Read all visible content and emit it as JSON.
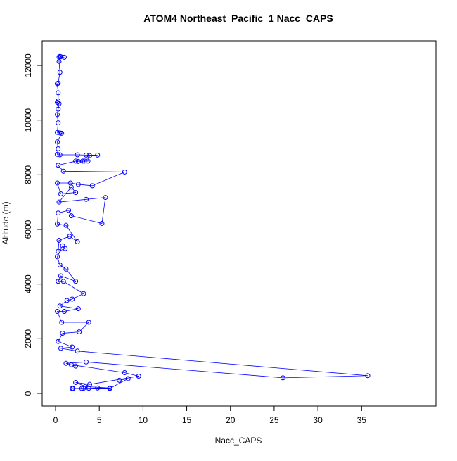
{
  "chart_data": {
    "type": "line",
    "title": "ATOM4 Northeast_Pacific_1 Nacc_CAPS",
    "xlabel": "Nacc_CAPS",
    "ylabel": "Altitude (m)",
    "xlim": [
      -1.53,
      43.5
    ],
    "ylim": [
      -464,
      12902
    ],
    "xticks": [
      0,
      5,
      10,
      15,
      20,
      25,
      30,
      35
    ],
    "yticks": [
      0,
      2000,
      4000,
      6000,
      8000,
      10000,
      12000
    ],
    "series": [
      {
        "color": "#0000ff",
        "x": [
          0.5,
          0.6,
          1.0,
          0.4,
          0.4,
          0.5,
          0.3,
          0.2,
          0.3,
          0.3,
          0.2,
          0.4,
          0.3,
          0.2,
          0.3,
          0.2,
          0.5,
          0.7,
          0.2,
          0.3,
          0.2,
          0.5,
          2.5,
          3.5,
          4.8,
          3.9,
          3.7,
          3.3,
          2.6,
          3.1,
          2.3,
          0.3,
          0.9,
          7.9,
          4.2,
          2.6,
          1.7,
          0.2,
          0.6,
          2.3,
          1.8,
          0.4,
          3.5,
          5.7,
          5.3,
          1.8,
          1.5,
          0.3,
          0.2,
          1.2,
          2.5,
          1.6,
          0.4,
          0.3,
          1.1,
          0.8,
          0.2,
          0.5,
          1.2,
          2.3,
          0.6,
          0.3,
          0.9,
          3.2,
          1.9,
          1.3,
          0.5,
          2.6,
          1.0,
          0.2,
          0.7,
          3.8,
          2.7,
          0.8,
          0.3,
          1.9,
          0.6,
          2.5,
          35.7,
          26.0,
          3.5,
          1.2,
          2.3,
          1.8,
          7.9,
          9.5,
          3.9,
          2.3,
          3.4,
          6.2,
          4.8,
          3.0,
          1.9,
          2.0,
          3.2,
          3.8,
          6.2,
          8.3,
          7.3
        ],
        "values": [
          12330,
          12320,
          12300,
          12310,
          12150,
          11750,
          11350,
          11330,
          11000,
          10700,
          10650,
          10600,
          10400,
          10200,
          9900,
          9550,
          9530,
          9520,
          9200,
          8950,
          8750,
          8730,
          8730,
          8720,
          8720,
          8700,
          8500,
          8500,
          8490,
          8500,
          8500,
          8350,
          8130,
          8100,
          7600,
          7650,
          7700,
          7700,
          7300,
          7350,
          7550,
          7000,
          7100,
          7170,
          6220,
          6500,
          6700,
          6600,
          6200,
          6150,
          5550,
          5750,
          5600,
          5200,
          5300,
          5400,
          5000,
          4700,
          4550,
          4100,
          4300,
          4100,
          4100,
          3650,
          3450,
          3400,
          3200,
          3100,
          3000,
          3000,
          2600,
          2600,
          2250,
          2200,
          1900,
          1700,
          1650,
          1550,
          650,
          570,
          1150,
          1100,
          1000,
          1050,
          760,
          630,
          330,
          400,
          250,
          200,
          200,
          180,
          180,
          180,
          190,
          190,
          180,
          540,
          480
        ]
      }
    ]
  }
}
